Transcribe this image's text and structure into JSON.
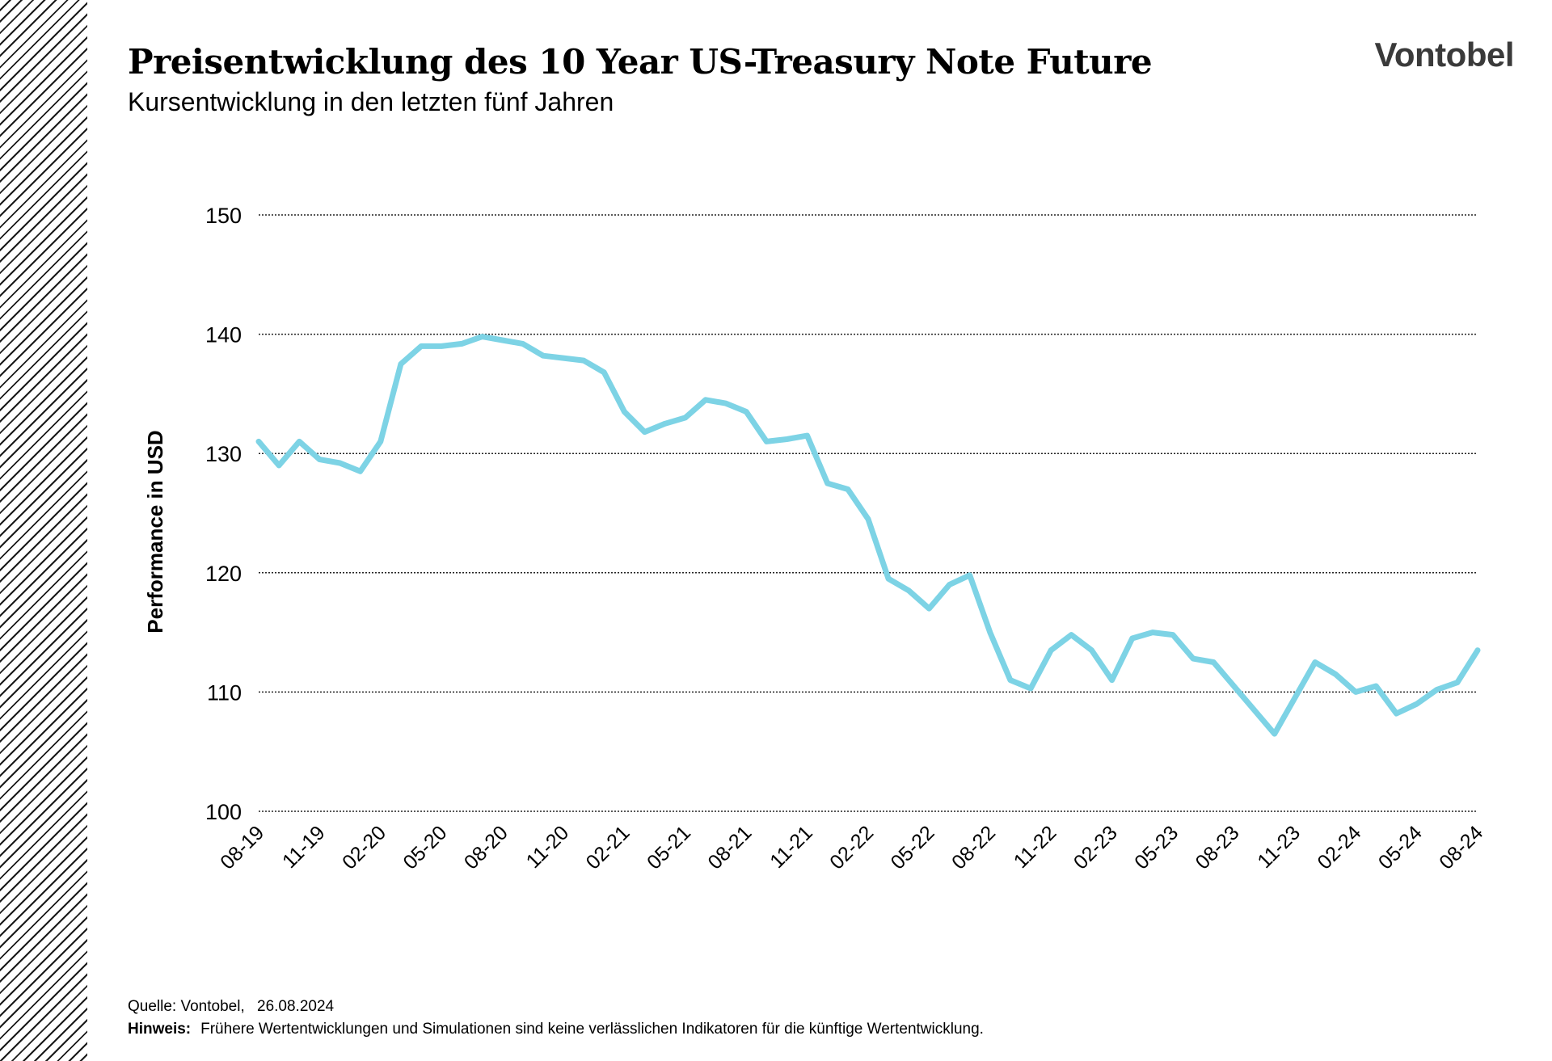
{
  "header": {
    "title": "Preisentwicklung des 10 Year US-Treasury Note Future",
    "subtitle": "Kursentwicklung in den letzten fünf Jahren",
    "logo_text": "Vontobel"
  },
  "footer": {
    "source_label": "Quelle:",
    "source_value": "Vontobel,",
    "source_date": "26.08.2024",
    "note_label": "Hinweis:",
    "note_text": "Frühere Wertentwicklungen und Simulationen sind keine verlässlichen Indikatoren für die künftige Wertentwicklung."
  },
  "colors": {
    "line": "#7dd3e5",
    "grid": "#222222",
    "text": "#000000"
  },
  "chart_data": {
    "type": "line",
    "title": "Preisentwicklung des 10 Year US-Treasury Note Future",
    "subtitle": "Kursentwicklung in den letzten fünf Jahren",
    "xlabel": "",
    "ylabel": "Performance in USD",
    "ylim": [
      100,
      150
    ],
    "yticks": [
      100,
      110,
      120,
      130,
      140,
      150
    ],
    "xlim": [
      "2019-08",
      "2024-08"
    ],
    "xtick_labels": [
      "08-19",
      "11-19",
      "02-20",
      "05-20",
      "08-20",
      "11-20",
      "02-21",
      "05-21",
      "08-21",
      "11-21",
      "02-22",
      "05-22",
      "08-22",
      "11-22",
      "02-23",
      "05-23",
      "08-23",
      "11-23",
      "02-24",
      "05-24",
      "08-24"
    ],
    "grid": "horizontal dotted",
    "legend": "none",
    "series": [
      {
        "x": [
          "2019-08",
          "2019-09",
          "2019-10",
          "2019-11",
          "2019-12",
          "2020-01",
          "2020-02",
          "2020-03",
          "2020-04",
          "2020-05",
          "2020-06",
          "2020-07",
          "2020-08",
          "2020-09",
          "2020-10",
          "2020-11",
          "2020-12",
          "2021-01",
          "2021-02",
          "2021-03",
          "2021-04",
          "2021-05",
          "2021-06",
          "2021-07",
          "2021-08",
          "2021-09",
          "2021-10",
          "2021-11",
          "2021-12",
          "2022-01",
          "2022-02",
          "2022-03",
          "2022-04",
          "2022-05",
          "2022-06",
          "2022-07",
          "2022-08",
          "2022-09",
          "2022-10",
          "2022-11",
          "2022-12",
          "2023-01",
          "2023-02",
          "2023-03",
          "2023-04",
          "2023-05",
          "2023-06",
          "2023-07",
          "2023-08",
          "2023-09",
          "2023-10",
          "2023-11",
          "2023-12",
          "2024-01",
          "2024-02",
          "2024-03",
          "2024-04",
          "2024-05",
          "2024-06",
          "2024-07",
          "2024-08"
        ],
        "values": [
          131.0,
          129.0,
          131.0,
          129.5,
          129.2,
          128.5,
          131.0,
          137.5,
          139.0,
          139.0,
          139.2,
          139.8,
          139.5,
          139.2,
          138.2,
          138.0,
          137.8,
          136.8,
          133.5,
          131.8,
          132.5,
          133.0,
          134.5,
          134.2,
          133.5,
          131.0,
          131.2,
          131.5,
          127.5,
          127.0,
          124.5,
          119.5,
          118.5,
          117.0,
          119.0,
          119.8,
          115.0,
          111.0,
          110.3,
          113.5,
          114.8,
          113.5,
          111.0,
          114.5,
          115.0,
          114.8,
          112.8,
          112.5,
          110.5,
          108.5,
          106.5,
          109.5,
          112.5,
          111.5,
          110.0,
          110.5,
          108.2,
          109.0,
          110.2,
          110.8,
          113.5
        ]
      }
    ]
  }
}
